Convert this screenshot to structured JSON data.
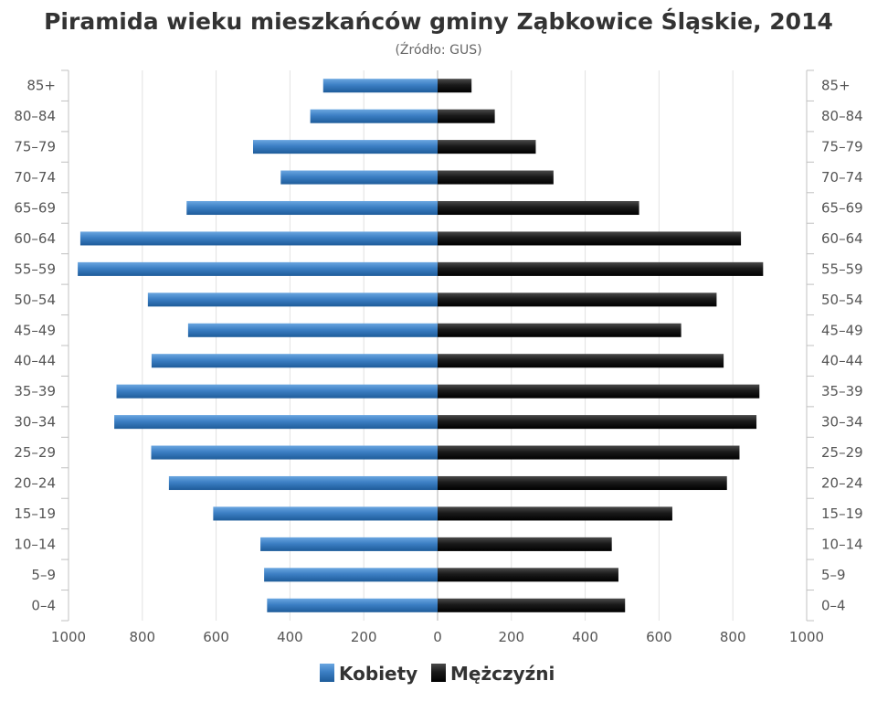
{
  "chart_data": {
    "type": "bar",
    "orientation": "horizontal",
    "title": "Piramida wieku mieszkańców gminy Ząbkowice Śląskie, 2014",
    "subtitle": "(Źródło: GUS)",
    "categories": [
      "85+",
      "80–84",
      "75–79",
      "70–74",
      "65–69",
      "60–64",
      "55–59",
      "50–54",
      "45–49",
      "40–44",
      "35–39",
      "30–34",
      "25–29",
      "20–24",
      "15–19",
      "10–14",
      "5–9",
      "0–4"
    ],
    "series": [
      {
        "name": "Kobiety",
        "side": "left",
        "color": "#3a78b8",
        "values": [
          310,
          345,
          500,
          425,
          680,
          968,
          975,
          785,
          676,
          775,
          870,
          876,
          776,
          728,
          608,
          480,
          470,
          462
        ]
      },
      {
        "name": "Mężczyźni",
        "side": "right",
        "color": "#1a1a1a",
        "values": [
          92,
          155,
          266,
          314,
          546,
          822,
          882,
          756,
          660,
          775,
          872,
          864,
          818,
          784,
          636,
          472,
          490,
          508
        ]
      }
    ],
    "x_ticks": [
      "1000",
      "800",
      "600",
      "400",
      "200",
      "0",
      "200",
      "400",
      "600",
      "800",
      "1000"
    ],
    "xlim": [
      -1000,
      1000
    ],
    "grid": true,
    "legend_position": "bottom"
  }
}
